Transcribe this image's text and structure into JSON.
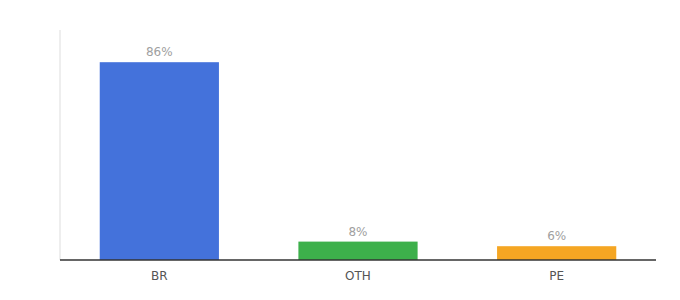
{
  "chart_data": {
    "type": "bar",
    "categories": [
      "BR",
      "OTH",
      "PE"
    ],
    "values": [
      86,
      8,
      6
    ],
    "value_labels": [
      "86%",
      "8%",
      "6%"
    ],
    "colors": [
      "#4472db",
      "#3db04b",
      "#f5a623"
    ],
    "ylim": [
      0,
      100
    ],
    "data_labels": true,
    "tick_labels": "x",
    "grid": false
  }
}
